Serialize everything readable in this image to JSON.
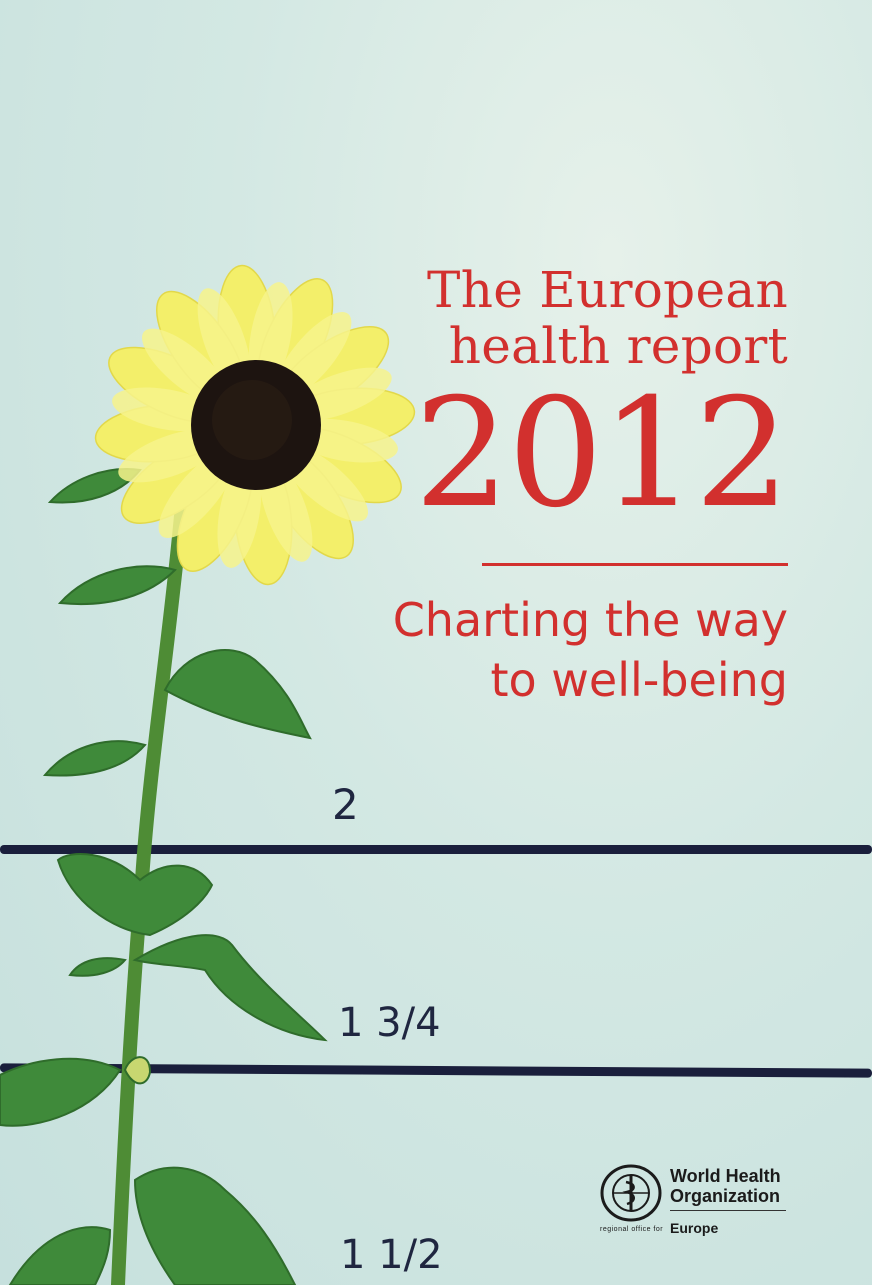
{
  "title": {
    "line1": "The European",
    "line2": "health report",
    "year": "2012"
  },
  "subtitle": {
    "line1": "Charting the way",
    "line2": "to well-being"
  },
  "measurements": {
    "mark_2": "2",
    "mark_1_3_4": "1 3/4",
    "mark_1_1_2": "1 1/2"
  },
  "publisher": {
    "name_line1": "World Health",
    "name_line2": "Organization",
    "region": "Europe",
    "small_text": "regional office for"
  },
  "colors": {
    "title_red": "#d2302e",
    "background": "#cfe6e1",
    "petal_yellow": "#f3ef6a",
    "seed_center": "#1d1410",
    "leaf_green": "#3f8a3a",
    "line_navy": "#1a1f3c"
  }
}
